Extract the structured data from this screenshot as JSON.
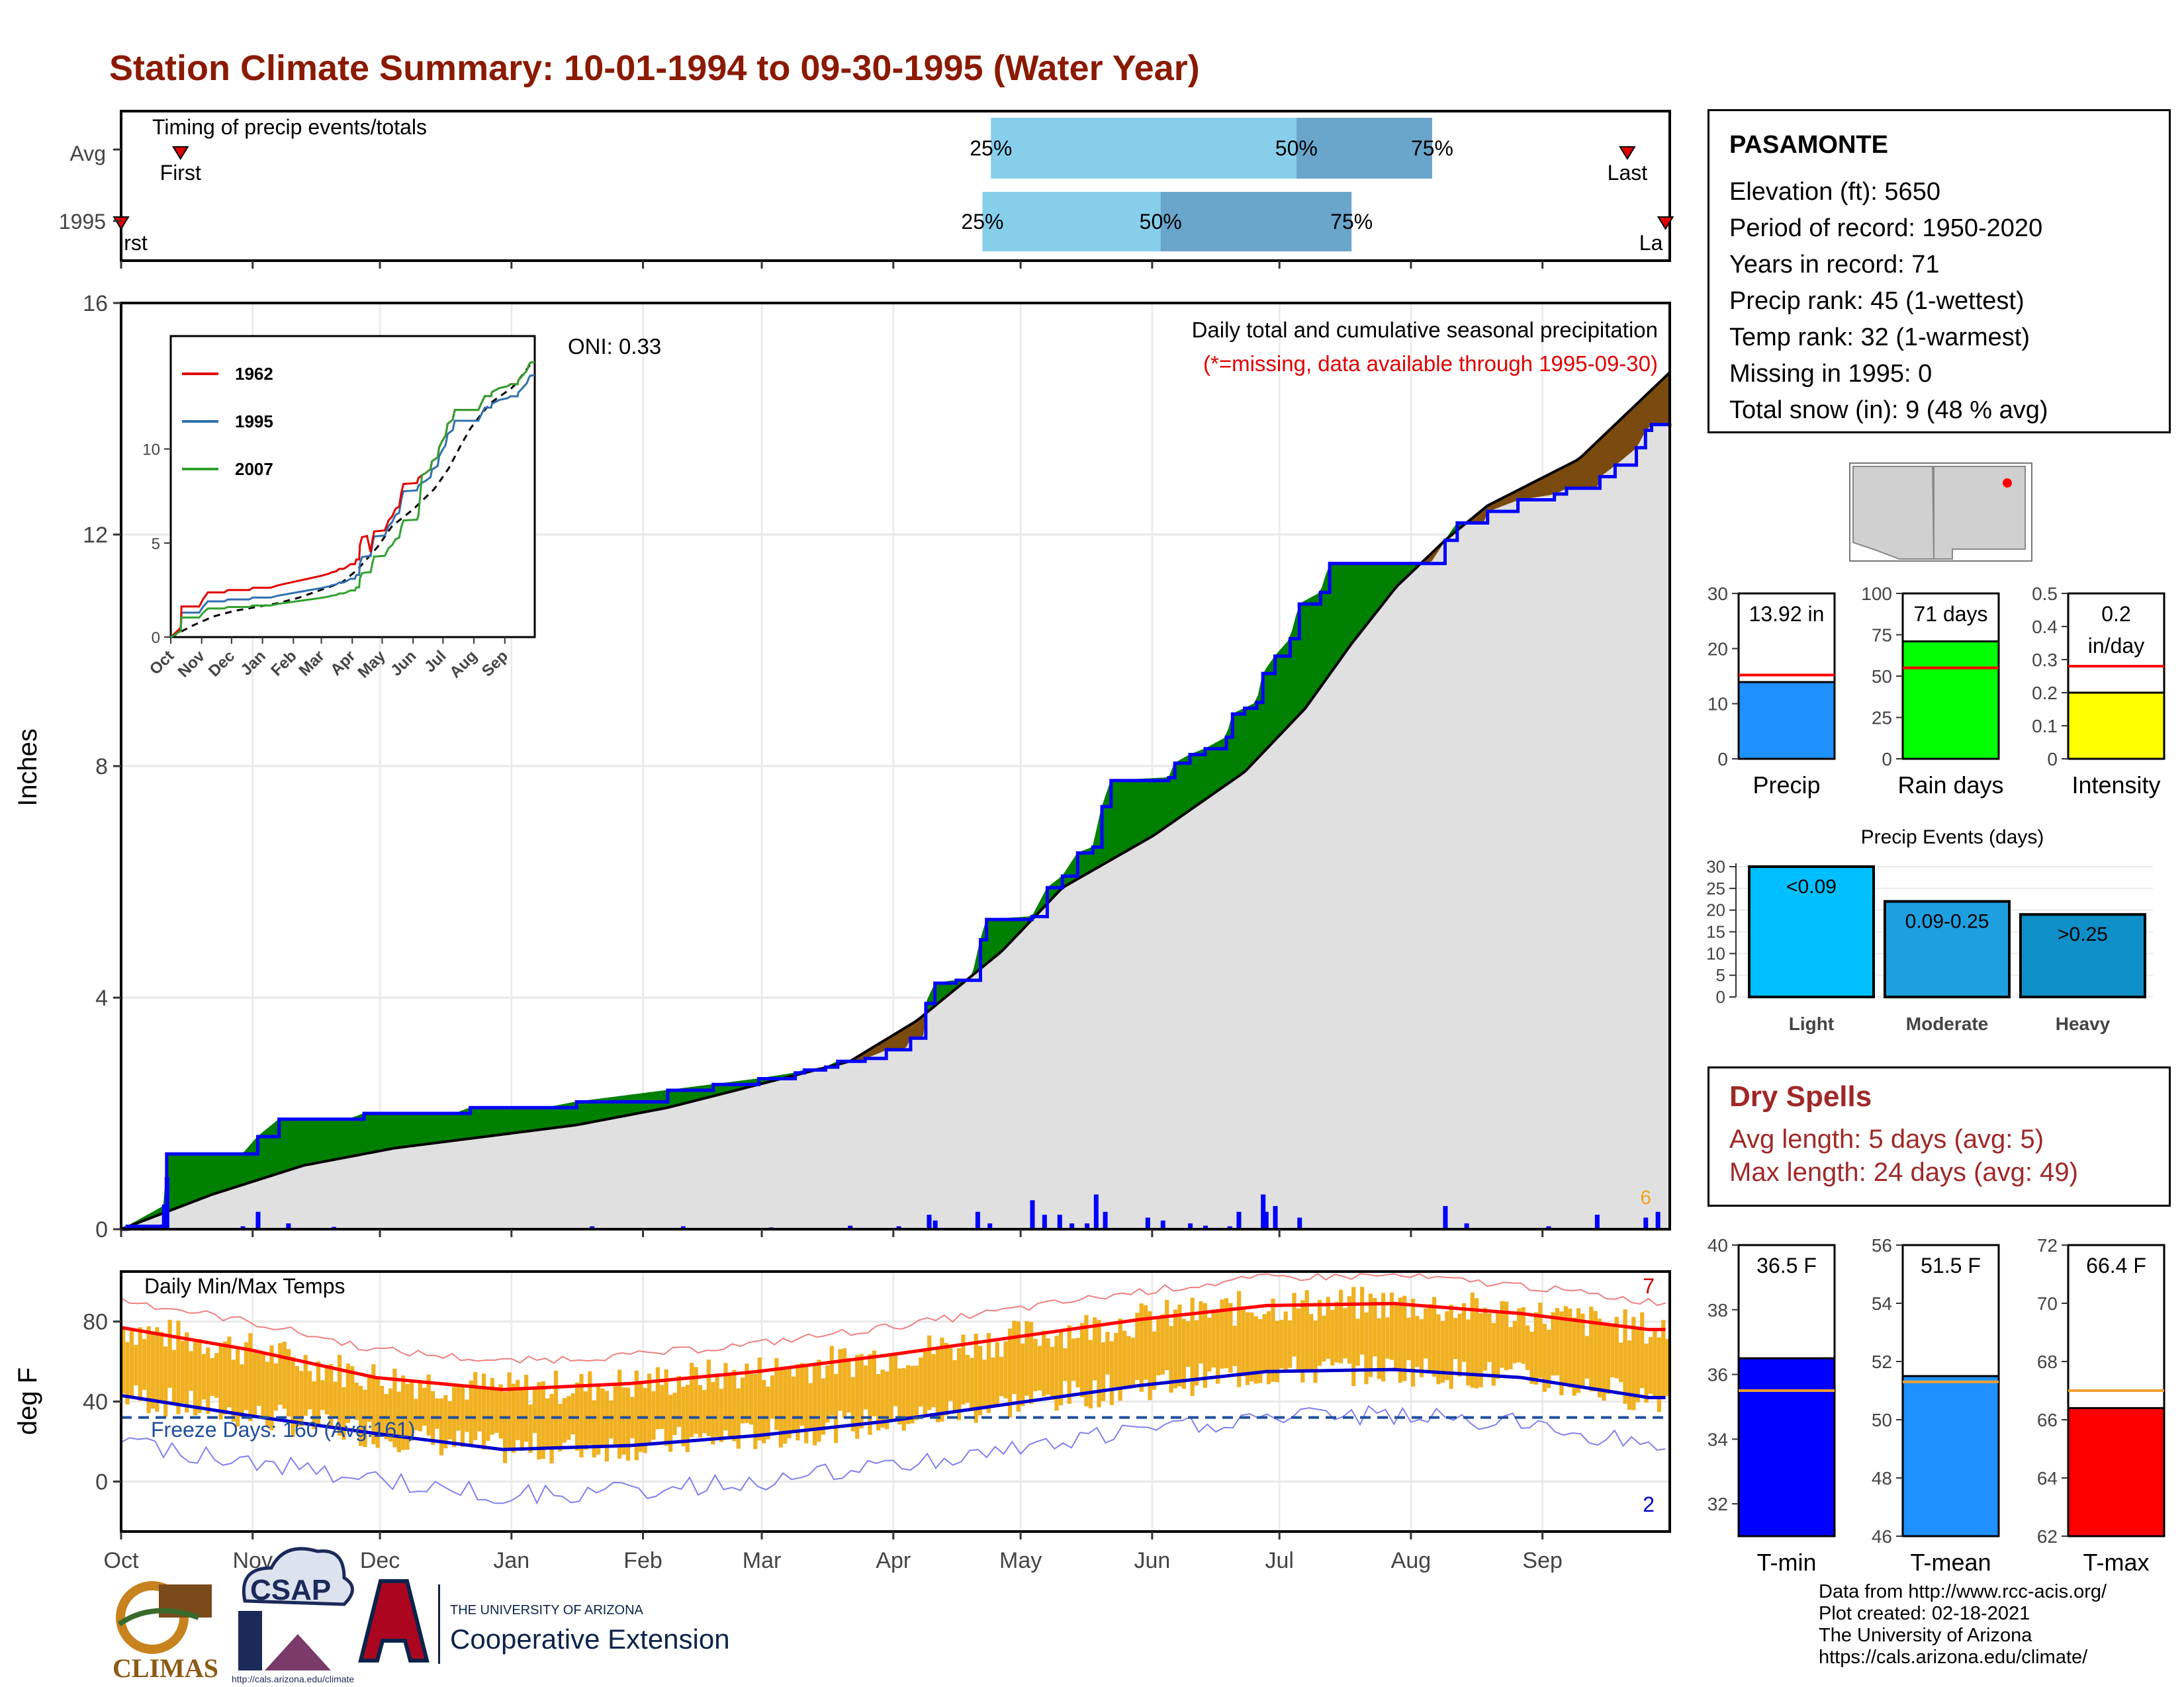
{
  "title": "Station Climate Summary: 10-01-1994 to 09-30-1995 (Water Year)",
  "timing": {
    "label": "Timing of precip events/totals",
    "rows": [
      "Avg",
      "1995"
    ],
    "avg": {
      "first_label": "First",
      "last_label": "Last",
      "p25": "25%",
      "p50": "50%",
      "p75": "75%"
    },
    "y1995": {
      "first_label": "First",
      "last_label": "Last",
      "p25": "25%",
      "p50": "50%",
      "p75": "75%"
    }
  },
  "station": {
    "name": "PASAMONTE",
    "rows": [
      "Elevation (ft): 5650",
      "Period of record: 1950-2020",
      "Years in record: 71",
      "Precip rank: 45 (1-wettest)",
      "Temp rank: 32 (1-warmest)",
      "Missing in 1995: 0",
      "Total snow (in): 9 (48 % avg)"
    ]
  },
  "dry_spells": {
    "title": "Dry Spells",
    "avg_length": "Avg length: 5 days (avg: 5)",
    "max_length": "Max length: 24 days (avg: 49)"
  },
  "credits": [
    "Data from http://www.rcc-acis.org/",
    "Plot created: 02-18-2021",
    "The University of Arizona",
    "https://cals.arizona.edu/climate/"
  ],
  "logos": {
    "climas": "CLIMAS",
    "csap": "CSAP",
    "csap_url": "http://cals.arizona.edu/climate",
    "ua_line1": "THE UNIVERSITY OF ARIZONA",
    "ua_line2": "Cooperative Extension"
  },
  "colors": {
    "title": "#8B1A00",
    "surplus": "#008000",
    "deficit": "#7B4A0E",
    "cum_line": "#0000FF",
    "normal_area": "#E0E0E0",
    "temp_bar": "#F0B020",
    "tmax_normal": "#FF0000",
    "tmin_normal": "#0000CC"
  },
  "chart_data": [
    {
      "type": "bar",
      "name": "timing",
      "rows": [
        {
          "label": "Avg",
          "p25": "Apr 24",
          "p50": "Jul 5",
          "p75": "Aug 6",
          "first": "Oct 15",
          "last": "Sep 21"
        },
        {
          "label": "1995",
          "p25": "Apr 22",
          "p50": "Jun 3",
          "p75": "Jul 18",
          "first": "Oct 1",
          "last": "Sep 30"
        }
      ]
    },
    {
      "type": "area",
      "title": "Daily total and cumulative seasonal precipitation",
      "subtitle": "(*=missing, data available through 1995-09-30)",
      "annotation": "ONI: 0.33",
      "corner_label": "6",
      "ylabel": "Inches",
      "ylim": [
        0,
        16
      ],
      "yticks": [
        0,
        4,
        8,
        12,
        16
      ],
      "xticks": [
        "Oct",
        "Nov",
        "Dec",
        "Jan",
        "Feb",
        "Mar",
        "Apr",
        "May",
        "Jun",
        "Jul",
        "Aug",
        "Sep"
      ],
      "observed_cumulative": [
        [
          0,
          0
        ],
        [
          2,
          0.05
        ],
        [
          14,
          0.4
        ],
        [
          15,
          1.3
        ],
        [
          30,
          1.3
        ],
        [
          40,
          1.3
        ],
        [
          45,
          1.6
        ],
        [
          52,
          1.9
        ],
        [
          75,
          1.9
        ],
        [
          80,
          2.0
        ],
        [
          100,
          2.0
        ],
        [
          110,
          2.0
        ],
        [
          115,
          2.1
        ],
        [
          140,
          2.1
        ],
        [
          150,
          2.2
        ],
        [
          180,
          2.4
        ],
        [
          195,
          2.5
        ],
        [
          210,
          2.6
        ],
        [
          222,
          2.7
        ],
        [
          225,
          2.75
        ],
        [
          232,
          2.8
        ],
        [
          236,
          2.9
        ],
        [
          242,
          2.9
        ],
        [
          245,
          2.95
        ],
        [
          252,
          3.1
        ],
        [
          258,
          3.1
        ],
        [
          260,
          3.3
        ],
        [
          264,
          3.3
        ],
        [
          265,
          3.9
        ],
        [
          268,
          4.25
        ],
        [
          275,
          4.3
        ],
        [
          280,
          4.3
        ],
        [
          283,
          5.0
        ],
        [
          285,
          5.35
        ],
        [
          300,
          5.4
        ],
        [
          305,
          5.9
        ],
        [
          310,
          6.1
        ],
        [
          315,
          6.5
        ],
        [
          320,
          6.6
        ],
        [
          323,
          7.3
        ],
        [
          326,
          7.75
        ],
        [
          345,
          7.8
        ],
        [
          347,
          8.05
        ],
        [
          352,
          8.2
        ],
        [
          357,
          8.3
        ],
        [
          364,
          8.5
        ],
        [
          366,
          8.9
        ],
        [
          370,
          9.0
        ],
        [
          374,
          9.1
        ],
        [
          376,
          9.6
        ],
        [
          380,
          9.9
        ],
        [
          385,
          10.2
        ],
        [
          388,
          10.8
        ],
        [
          395,
          11.0
        ],
        [
          398,
          11.5
        ],
        [
          400,
          11.5
        ],
        [
          402,
          11.5
        ],
        [
          410,
          11.5
        ],
        [
          419,
          11.5
        ],
        [
          431,
          11.5
        ],
        [
          436,
          11.9
        ],
        [
          440,
          12.2
        ],
        [
          449,
          12.2
        ],
        [
          450,
          12.4
        ],
        [
          460,
          12.6
        ],
        [
          472,
          12.7
        ],
        [
          476,
          12.8
        ],
        [
          486,
          12.8
        ],
        [
          487,
          13.0
        ],
        [
          492,
          13.2
        ],
        [
          499,
          13.5
        ],
        [
          502,
          13.8
        ],
        [
          504,
          13.9
        ],
        [
          510,
          13.92
        ]
      ],
      "normal_cumulative": [
        [
          0,
          0
        ],
        [
          30,
          0.6
        ],
        [
          60,
          1.1
        ],
        [
          90,
          1.4
        ],
        [
          120,
          1.6
        ],
        [
          150,
          1.8
        ],
        [
          180,
          2.1
        ],
        [
          210,
          2.5
        ],
        [
          240,
          2.9
        ],
        [
          262,
          3.6
        ],
        [
          290,
          4.8
        ],
        [
          310,
          5.9
        ],
        [
          340,
          6.8
        ],
        [
          370,
          7.9
        ],
        [
          390,
          9.0
        ],
        [
          405,
          10.1
        ],
        [
          420,
          11.1
        ],
        [
          436,
          11.9
        ],
        [
          450,
          12.5
        ],
        [
          480,
          13.3
        ],
        [
          510,
          14.8
        ]
      ],
      "daily_precip": [
        [
          2,
          0.05
        ],
        [
          15,
          0.9
        ],
        [
          40,
          0.05
        ],
        [
          45,
          0.3
        ],
        [
          55,
          0.1
        ],
        [
          70,
          0.04
        ],
        [
          155,
          0.05
        ],
        [
          185,
          0.05
        ],
        [
          214,
          0.03
        ],
        [
          240,
          0.06
        ],
        [
          256,
          0.05
        ],
        [
          266,
          0.25
        ],
        [
          268,
          0.15
        ],
        [
          282,
          0.3
        ],
        [
          286,
          0.1
        ],
        [
          300,
          0.5
        ],
        [
          304,
          0.25
        ],
        [
          309,
          0.25
        ],
        [
          313,
          0.1
        ],
        [
          318,
          0.1
        ],
        [
          321,
          0.6
        ],
        [
          324,
          0.3
        ],
        [
          338,
          0.2
        ],
        [
          343,
          0.15
        ],
        [
          352,
          0.1
        ],
        [
          357,
          0.06
        ],
        [
          365,
          0.05
        ],
        [
          368,
          0.3
        ],
        [
          376,
          0.6
        ],
        [
          377,
          0.3
        ],
        [
          380,
          0.4
        ],
        [
          388,
          0.2
        ],
        [
          436,
          0.4
        ],
        [
          443,
          0.1
        ],
        [
          470,
          0.05
        ],
        [
          486,
          0.25
        ],
        [
          502,
          0.2
        ],
        [
          506,
          0.3
        ]
      ]
    },
    {
      "type": "bar",
      "name": "inset-cumulative-comparison",
      "series_names": [
        "1962",
        "1995",
        "2007"
      ],
      "yticks": [
        0,
        5,
        10
      ],
      "xticks": [
        "Oct",
        "Nov",
        "Dec",
        "Jan",
        "Feb",
        "Mar",
        "Apr",
        "May",
        "Jun",
        "Jul",
        "Aug",
        "Sep"
      ]
    },
    {
      "type": "bar",
      "title": "Daily Min/Max Temps",
      "ylabel": "deg F",
      "annotation": "Freeze Days: 160 (Avg:161)",
      "top_count": "7",
      "bottom_count": "2",
      "yticks": [
        0,
        40,
        80
      ],
      "ylim": [
        -25,
        105
      ],
      "freeze_line": 32,
      "tmax_normal": [
        [
          0,
          77
        ],
        [
          30,
          66
        ],
        [
          60,
          52
        ],
        [
          90,
          46
        ],
        [
          120,
          49
        ],
        [
          150,
          55
        ],
        [
          180,
          63
        ],
        [
          210,
          72
        ],
        [
          240,
          81
        ],
        [
          270,
          88
        ],
        [
          300,
          89
        ],
        [
          330,
          84
        ],
        [
          360,
          76
        ]
      ],
      "tmin_normal": [
        [
          0,
          43
        ],
        [
          30,
          33
        ],
        [
          60,
          24
        ],
        [
          90,
          16
        ],
        [
          120,
          18
        ],
        [
          150,
          23
        ],
        [
          180,
          30
        ],
        [
          210,
          39
        ],
        [
          240,
          48
        ],
        [
          270,
          55
        ],
        [
          300,
          56
        ],
        [
          330,
          52
        ],
        [
          360,
          42
        ]
      ]
    },
    {
      "type": "bar",
      "name": "annual-precip-stats",
      "panels": [
        {
          "label": "Precip",
          "value": 13.92,
          "display": "13.92 in",
          "avg": 15.2,
          "ylim": [
            0,
            30
          ],
          "yticks": [
            0,
            10,
            20,
            30
          ],
          "color": "#1E90FF"
        },
        {
          "label": "Rain days",
          "value": 71,
          "display": "71 days",
          "avg": 55,
          "ylim": [
            0,
            100
          ],
          "yticks": [
            0,
            25,
            50,
            75,
            100
          ],
          "color": "#00FF00"
        },
        {
          "label": "Intensity",
          "value": 0.2,
          "display": "0.2",
          "display2": "in/day",
          "avg": 0.28,
          "ylim": [
            0,
            0.5
          ],
          "yticks": [
            0.0,
            0.1,
            0.2,
            0.3,
            0.4,
            0.5
          ],
          "color": "#FFFF00"
        }
      ]
    },
    {
      "type": "bar",
      "title": "Precip Events (days)",
      "categories": [
        "Light",
        "Moderate",
        "Heavy"
      ],
      "bar_labels": [
        "<0.09",
        "0.09-0.25",
        ">0.25"
      ],
      "values": [
        30,
        22,
        19
      ],
      "ylim": [
        0,
        30
      ],
      "yticks": [
        0,
        5,
        10,
        15,
        20,
        25,
        30
      ]
    },
    {
      "type": "bar",
      "name": "annual-temp-stats",
      "panels": [
        {
          "label": "T-min",
          "value": 36.5,
          "display": "36.5 F",
          "avg": 35.5,
          "ylim": [
            31,
            40
          ],
          "yticks": [
            32,
            34,
            36,
            38,
            40
          ],
          "color": "#0000FF"
        },
        {
          "label": "T-mean",
          "value": 51.5,
          "display": "51.5 F",
          "avg": 51.3,
          "ylim": [
            46,
            56
          ],
          "yticks": [
            46,
            48,
            50,
            52,
            54,
            56
          ],
          "color": "#1E90FF"
        },
        {
          "label": "T-max",
          "value": 66.4,
          "display": "66.4 F",
          "avg": 67.0,
          "ylim": [
            62,
            72
          ],
          "yticks": [
            62,
            64,
            66,
            68,
            70,
            72
          ],
          "color": "#FF0000"
        }
      ]
    }
  ]
}
